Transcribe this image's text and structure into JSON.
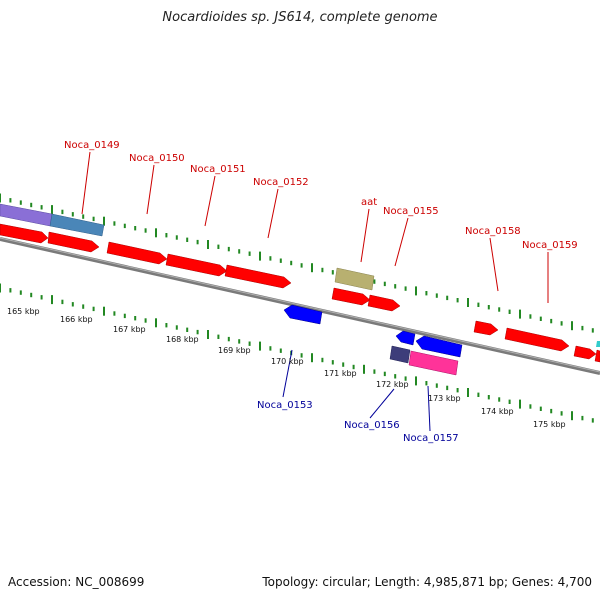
{
  "title": "Nocardioides sp. JS614, complete genome",
  "footer": {
    "accession": "Accession: NC_008699",
    "summary": "Topology: circular; Length: 4,985,871 bp; Genes: 4,700"
  },
  "colors": {
    "forward_label": "#cc0000",
    "reverse_label": "#000099",
    "backbone": "#808080",
    "ticks": "#228822",
    "gene_red": "#ff0000",
    "gene_blue": "#0000ff",
    "gene_olive": "#b8b070",
    "gene_magenta": "#ff3399",
    "gene_purple": "#8a6fd6",
    "gene_steel": "#4a86b8",
    "gene_navy": "#3d3d7a"
  },
  "kbp_labels": [
    "165 kbp",
    "166 kbp",
    "167 kbp",
    "168 kbp",
    "169 kbp",
    "170 kbp",
    "171 kbp",
    "172 kbp",
    "173 kbp",
    "174 kbp",
    "175 kbp"
  ],
  "forward_gene_labels": [
    "Noca_0149",
    "Noca_0150",
    "Noca_0151",
    "Noca_0152",
    "aat",
    "Noca_0155",
    "Noca_0158",
    "Noca_0159"
  ],
  "reverse_gene_labels": [
    "Noca_0153",
    "Noca_0156",
    "Noca_0157"
  ]
}
